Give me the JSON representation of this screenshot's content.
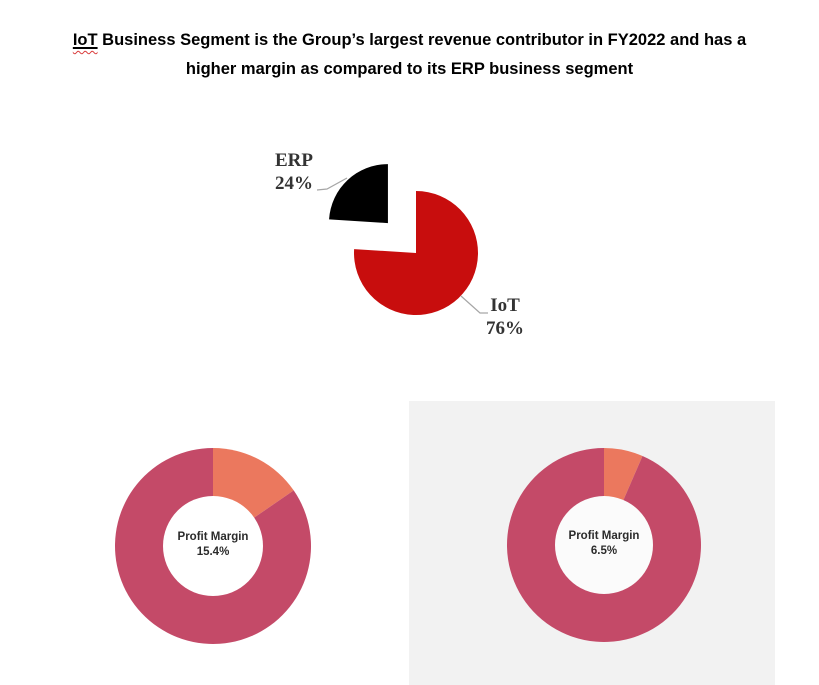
{
  "title": {
    "highlight": "IoT",
    "line1_rest": " Business Segment is the Group’s largest revenue contributor in FY2022 and has a",
    "line2": "higher margin as compared to its ERP business segment"
  },
  "pie": {
    "erp_name": "ERP",
    "erp_pct": "24%",
    "iot_name": "IoT",
    "iot_pct": "76%"
  },
  "donut_left": {
    "line1": "Profit Margin",
    "line2": "15.4%"
  },
  "donut_right": {
    "line1": "Profit Margin",
    "line2": "6.5%"
  },
  "colors": {
    "pie_iot_red": "#C80D0D",
    "pie_erp_black": "#000000",
    "donut_highlight_salmon": "#EB785E",
    "donut_base_rose": "#C44A68",
    "panel_bg": "#F2F2F2",
    "leader_line": "#A6A6A6"
  },
  "chart_data": [
    {
      "type": "pie",
      "title": "",
      "categories": [
        "IoT",
        "ERP"
      ],
      "values": [
        76,
        24
      ],
      "colors": [
        "#C80D0D",
        "#000000"
      ],
      "data_labels": [
        "IoT 76%",
        "ERP 24%"
      ],
      "exploded": [
        false,
        true
      ],
      "start_angle_deg": 0,
      "direction": "clockwise",
      "legend": "none"
    },
    {
      "type": "donut",
      "title": "",
      "center_label": [
        "Profit Margin",
        "15.4%"
      ],
      "categories": [
        "Profit Margin",
        "Remainder"
      ],
      "values": [
        15.4,
        84.6
      ],
      "colors": [
        "#EB785E",
        "#C44A68"
      ],
      "hole_color": "#FFFFFF",
      "start_angle_deg": 0,
      "direction": "clockwise",
      "legend": "none"
    },
    {
      "type": "donut",
      "title": "",
      "center_label": [
        "Profit Margin",
        "6.5%"
      ],
      "categories": [
        "Profit Margin",
        "Remainder"
      ],
      "values": [
        6.5,
        93.5
      ],
      "colors": [
        "#EB785E",
        "#C44A68"
      ],
      "hole_color": "#FBFBFB",
      "start_angle_deg": 0,
      "direction": "clockwise",
      "legend": "none"
    }
  ]
}
